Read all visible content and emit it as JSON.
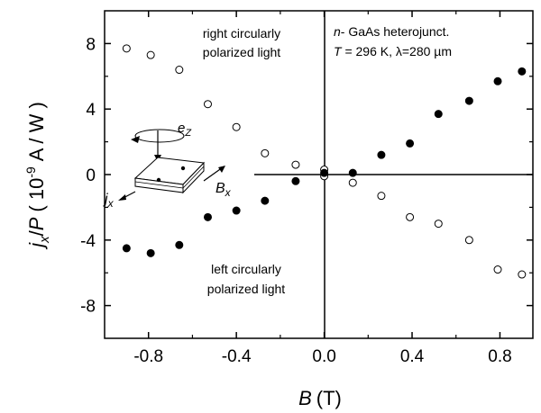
{
  "chart_data": {
    "type": "scatter",
    "xlabel": {
      "var": "B",
      "unit": "(T)"
    },
    "ylabel": {
      "var": "j",
      "sub": "x",
      "slash": "/",
      "var2": "P",
      "open": "( 10",
      "exp": "-9",
      "unit": "A / W )"
    },
    "xlim": [
      -1.0,
      0.95
    ],
    "ylim": [
      -10,
      10
    ],
    "xticks": [
      -0.8,
      -0.4,
      0.0,
      0.4,
      0.8
    ],
    "xtick_labels": [
      "-0.8",
      "-0.4",
      "0.0",
      "0.4",
      "0.8"
    ],
    "yticks": [
      -8,
      -4,
      0,
      4,
      8
    ],
    "ytick_labels": [
      "-8",
      "-4",
      "0",
      "4",
      "8"
    ],
    "grid": false,
    "series": [
      {
        "marker": "open-circle",
        "x": [
          -0.9,
          -0.79,
          -0.66,
          -0.53,
          -0.4,
          -0.27,
          -0.13,
          0.0,
          0.0,
          0.13,
          0.26,
          0.39,
          0.52,
          0.66,
          0.79,
          0.9
        ],
        "y": [
          7.7,
          7.3,
          6.4,
          4.3,
          2.9,
          1.3,
          0.6,
          0.3,
          -0.1,
          -0.5,
          -1.3,
          -2.6,
          -3.0,
          -4.0,
          -5.8,
          -6.1
        ]
      },
      {
        "marker": "filled-circle",
        "x": [
          -0.9,
          -0.79,
          -0.66,
          -0.53,
          -0.4,
          -0.27,
          -0.13,
          0.0,
          0.13,
          0.26,
          0.39,
          0.52,
          0.66,
          0.79,
          0.9
        ],
        "y": [
          -4.5,
          -4.8,
          -4.3,
          -2.6,
          -2.2,
          -1.6,
          -0.4,
          0.1,
          0.1,
          1.2,
          1.9,
          3.7,
          4.5,
          5.7,
          6.3
        ]
      }
    ],
    "annotations": {
      "top_left": [
        "right circularly",
        "polarized light"
      ],
      "bottom_left": [
        "left circularly",
        "polarized light"
      ],
      "top_right": {
        "line1_italic": "n",
        "line1_rest": "- GaAs heterojunct.",
        "line2_T": "T",
        "line2_rest": " = 296 K, λ=280 µm"
      },
      "inset": {
        "ez": "e",
        "ez_sub": "Z",
        "bx": "B",
        "bx_sub": "x",
        "jx": "j",
        "jx_sub": "x"
      }
    }
  }
}
